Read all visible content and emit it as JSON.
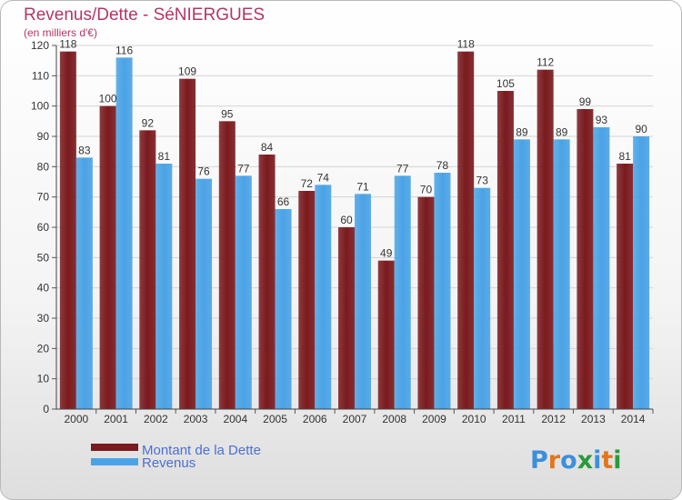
{
  "chart_data": {
    "type": "bar",
    "title": "Revenus/Dette - SéNIERGUES",
    "subtitle": "(en milliers d'€)",
    "categories": [
      "2000",
      "2001",
      "2002",
      "2003",
      "2004",
      "2005",
      "2006",
      "2007",
      "2008",
      "2009",
      "2010",
      "2011",
      "2012",
      "2013",
      "2014"
    ],
    "series": [
      {
        "name": "Montant de la Dette",
        "values": [
          118,
          100,
          92,
          109,
          95,
          84,
          72,
          60,
          49,
          70,
          118,
          105,
          112,
          99,
          81
        ],
        "color": "#7a1a1e"
      },
      {
        "name": "Revenus",
        "values": [
          83,
          116,
          81,
          76,
          77,
          66,
          74,
          71,
          77,
          78,
          73,
          89,
          89,
          93,
          90
        ],
        "color": "#4aa3e6"
      }
    ],
    "ylim": [
      0,
      120
    ],
    "yticks": [
      0,
      10,
      20,
      30,
      40,
      50,
      60,
      70,
      80,
      90,
      100,
      110,
      120
    ],
    "grid": true,
    "legend_position": "bottom-left"
  },
  "branding": {
    "logo_letters": [
      "P",
      "r",
      "o",
      "x",
      "i",
      "t",
      "i"
    ],
    "logo_colors": [
      "#3c8fdc",
      "#e2761f",
      "#3c8fdc",
      "#2a9a3c",
      "#3c8fdc",
      "#e2761f",
      "#2a9a3c"
    ]
  }
}
